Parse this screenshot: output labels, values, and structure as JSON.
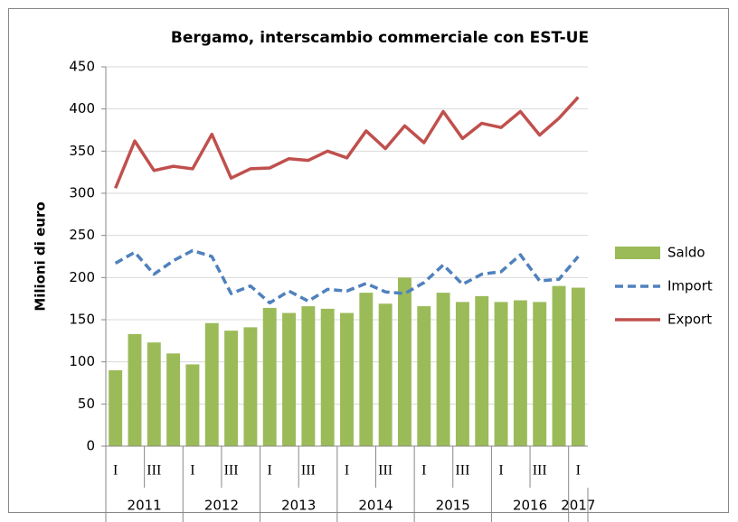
{
  "chart_data": {
    "type": "bar_line",
    "title": "Bergamo, interscambio commerciale con EST-UE",
    "y_label": "Milioni  di euro",
    "categories": [
      "I",
      null,
      "III",
      null,
      "I",
      null,
      "III",
      null,
      "I",
      null,
      "III",
      null,
      "I",
      null,
      "III",
      null,
      "I",
      null,
      "III",
      null,
      "I",
      null,
      "III",
      null,
      "I"
    ],
    "year_groups": [
      "2011",
      "2012",
      "2013",
      "2014",
      "2015",
      "2016",
      "2017"
    ],
    "series": [
      {
        "name": "Saldo",
        "color": "#9bbb59",
        "kind": "bar",
        "values": [
          90,
          133,
          123,
          110,
          97,
          146,
          137,
          141,
          164,
          158,
          166,
          163,
          158,
          182,
          169,
          200,
          166,
          182,
          171,
          178,
          171,
          173,
          171,
          190,
          188
        ]
      },
      {
        "name": "Import",
        "color": "#4f81bd",
        "kind": "dashed",
        "values": [
          217,
          230,
          204,
          220,
          232,
          225,
          181,
          190,
          170,
          184,
          172,
          186,
          184,
          193,
          183,
          181,
          194,
          215,
          192,
          204,
          207,
          227,
          196,
          198,
          225
        ]
      },
      {
        "name": "Export",
        "color": "#c0504d",
        "kind": "line",
        "values": [
          306,
          362,
          327,
          332,
          329,
          370,
          318,
          329,
          330,
          341,
          339,
          350,
          342,
          374,
          353,
          380,
          360,
          397,
          365,
          383,
          378,
          397,
          369,
          389,
          414
        ]
      }
    ],
    "ylim": [
      0,
      450
    ],
    "yticks": [
      0,
      50,
      100,
      150,
      200,
      250,
      300,
      350,
      400,
      450
    ],
    "grid": true,
    "legend": "right"
  }
}
